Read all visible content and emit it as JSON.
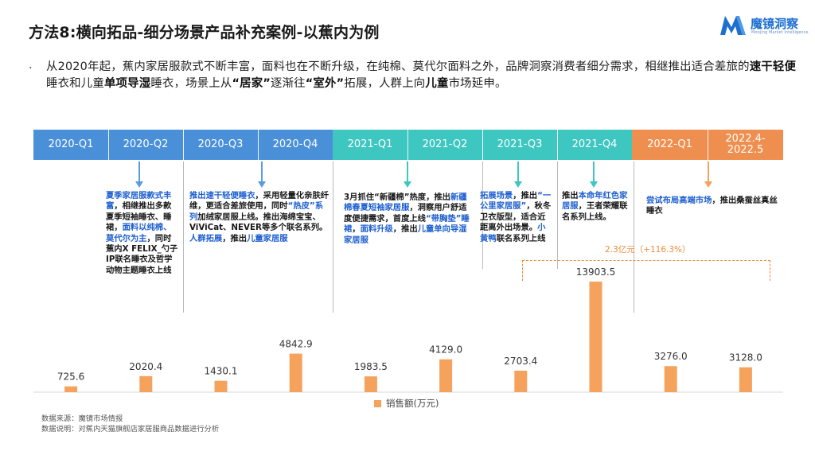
{
  "title": "方法8:横向拓品-细分场景产品补充案例-以蕉内为例",
  "logo": {
    "name": "魔镜洞察",
    "tagline": "Moojing Market Intelligence",
    "color": "#1f6fd1"
  },
  "intro": {
    "bullet": "·",
    "p1": "从2020年起，蕉内家居服款式不断丰富，面料也在不断升级，在纯棉、莫代尔面料之外，品牌洞察消费者细分需求，相继推出适合差旅的",
    "b1": "速干轻便",
    "p2": "睡衣和儿童",
    "b2": "单项导湿",
    "p3": "睡衣，场景上从",
    "b3": "“居家”",
    "p4": "逐渐往",
    "b4": "“室外”",
    "p5": "拓展，人群上向",
    "b5": "儿童",
    "p6": "市场延申。"
  },
  "timeline": {
    "colors": {
      "2020": "#4a90d9",
      "2021": "#3ec6c0",
      "2022": "#ef8f4f"
    },
    "quarters": [
      "2020-Q1",
      "2020-Q2",
      "2020-Q3",
      "2020-Q4",
      "2021-Q1",
      "2021-Q2",
      "2021-Q3",
      "2021-Q4",
      "2022-Q1",
      "2022.4-2022.5"
    ]
  },
  "notes": {
    "n1": {
      "a": "夏季家居服款式丰富",
      "b": "，相继推出多款夏季短袖睡衣、睡裙，",
      "c": "面料以纯棉、莫代尔为主",
      "d": "，同时蕉内X FELIX_勺子IP联名睡衣及哲学动物主题睡衣上线"
    },
    "n2": {
      "a": "推出速干轻便睡衣",
      "b": "，采用轻量化亲肤纤维，更适合差旅使用，同时",
      "c": "“热皮”系列",
      "d": "加绒家居服上线。推出海绵宝宝、ViViCat、NEVER等多个联名系列。",
      "e": "人群拓展",
      "f": "，推出",
      "g": "儿童家居服"
    },
    "n3": {
      "a": "3月抓住“新疆棉”热度，推出",
      "b": "新疆棉春夏短袖家居服",
      "c": "，洞察用户舒适度便捷需求，首度上线",
      "d": "“带胸垫”睡裙",
      "e": "，",
      "f": "面料升级",
      "g": "，推出",
      "h": "儿童单向导湿家居服"
    },
    "n4": {
      "a": "拓展场景",
      "b": "，推出",
      "c": "“一公里家居服”",
      "d": "，秋冬卫衣版型，适合近距离外出场景。",
      "e": "小黄鸭",
      "f": "联名系列上线"
    },
    "n5": {
      "a": "推出",
      "b": "本命年红色家居服",
      "c": "，王者荣耀联名系列上线。"
    },
    "n6": {
      "a": "尝试布局高端市场",
      "b": "，推出桑蚕丝真丝睡衣"
    }
  },
  "growth_annotation": "2.3亿元（+116.3%）",
  "chart_data": {
    "type": "bar",
    "categories": [
      "2020-Q1",
      "2020-Q2",
      "2020-Q3",
      "2020-Q4",
      "2021-Q1",
      "2021-Q2",
      "2021-Q3",
      "2021-Q4",
      "2022-Q1",
      "2022.4-2022.5"
    ],
    "series": [
      {
        "name": "销售额(万元)",
        "values": [
          725.6,
          2020.4,
          1430.1,
          4842.9,
          1983.5,
          4129.0,
          2703.4,
          13903.5,
          3276.0,
          3128.0
        ]
      }
    ],
    "value_labels": [
      "725.6",
      "2020.4",
      "1430.1",
      "4842.9",
      "1983.5",
      "4129.0",
      "2703.4",
      "13903.5",
      "3276.0",
      "3128.0"
    ],
    "ylim": [
      0,
      14000
    ],
    "bar_color": "#f5a25d",
    "legend_position": "bottom-center",
    "grid": false
  },
  "legend": {
    "label": "销售额(万元)"
  },
  "footnotes": {
    "source": "数据来源：魔镜市场情报",
    "note": "数据说明：对蕉内天猫旗舰店家居服商品数据进行分析"
  }
}
